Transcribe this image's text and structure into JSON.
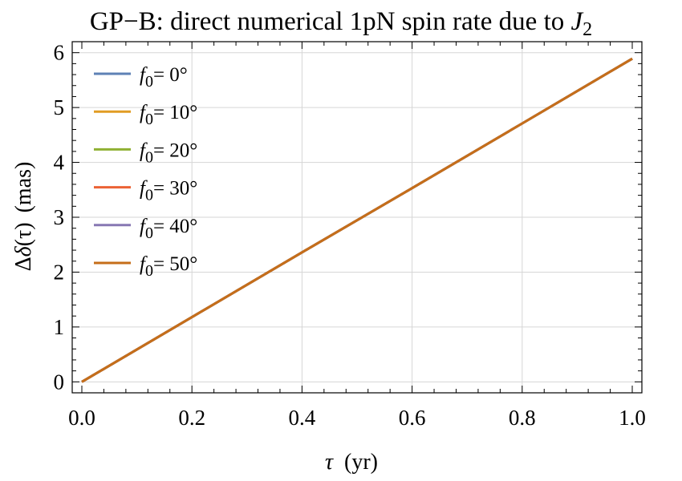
{
  "chart_data": {
    "type": "line",
    "title": {
      "text": "GP−B: direct numerical 1pN spin rate due to ",
      "var": "J",
      "sub": "2"
    },
    "xlabel": {
      "var": "τ",
      "unit": "(yr)"
    },
    "ylabel": {
      "delta": "Δ",
      "var": "δ",
      "arg": "(τ)",
      "unit": "(mas)"
    },
    "xlim": [
      0.0,
      1.0
    ],
    "ylim": [
      -0.2,
      6.2
    ],
    "x_ticks": [
      "0.0",
      "0.2",
      "0.4",
      "0.6",
      "0.8",
      "1.0"
    ],
    "y_ticks": [
      "0",
      "1",
      "2",
      "3",
      "4",
      "5",
      "6"
    ],
    "grid": true,
    "legend_position": "top-left",
    "x": [
      0.0,
      0.2,
      0.4,
      0.6,
      0.8,
      1.0
    ],
    "series": [
      {
        "name": {
          "var": "f",
          "sub": "0",
          "val": "= 0°"
        },
        "color": "#5E81B5",
        "values": [
          0.0,
          1.18,
          2.36,
          3.53,
          4.71,
          5.89
        ]
      },
      {
        "name": {
          "var": "f",
          "sub": "0",
          "val": "= 10°"
        },
        "color": "#E19C24",
        "values": [
          0.0,
          1.18,
          2.36,
          3.53,
          4.71,
          5.89
        ]
      },
      {
        "name": {
          "var": "f",
          "sub": "0",
          "val": "= 20°"
        },
        "color": "#8FB032",
        "values": [
          0.0,
          1.18,
          2.36,
          3.53,
          4.71,
          5.89
        ]
      },
      {
        "name": {
          "var": "f",
          "sub": "0",
          "val": "= 30°"
        },
        "color": "#EB6235",
        "values": [
          0.0,
          1.18,
          2.36,
          3.53,
          4.71,
          5.89
        ]
      },
      {
        "name": {
          "var": "f",
          "sub": "0",
          "val": "= 40°"
        },
        "color": "#8778B3",
        "values": [
          0.0,
          1.18,
          2.36,
          3.53,
          4.71,
          5.89
        ]
      },
      {
        "name": {
          "var": "f",
          "sub": "0",
          "val": "= 50°"
        },
        "color": "#C56E1A",
        "values": [
          0.0,
          1.18,
          2.36,
          3.53,
          4.71,
          5.89
        ]
      }
    ]
  }
}
